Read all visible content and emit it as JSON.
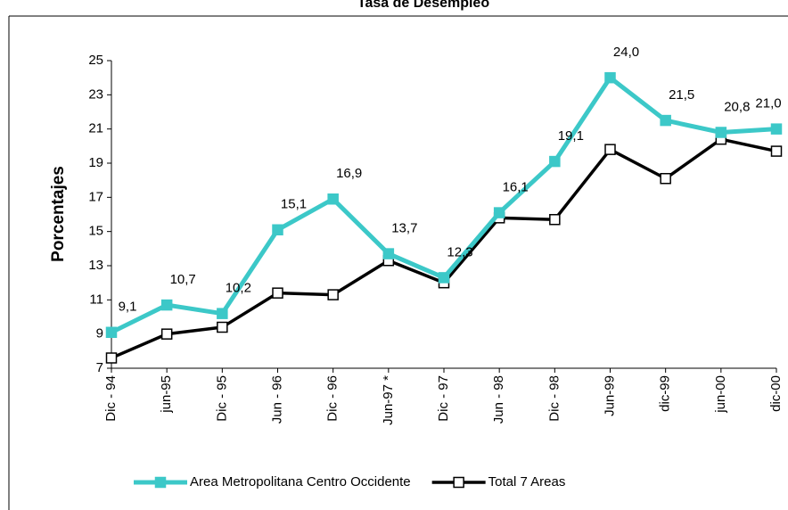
{
  "chart_data": {
    "type": "line",
    "title": "Tasa de Desempleo",
    "y_label": "Porcentajes",
    "categories": [
      "Dic - 94",
      "jun-95",
      "Dic - 95",
      "Jun - 96",
      "Dic - 96",
      "Jun-97 *",
      "Dic - 97",
      "Jun - 98",
      "Dic - 98",
      "Jun-99",
      "dic-99",
      "jun-00",
      "dic-00"
    ],
    "series": [
      {
        "name": "Area Metropolitana Centro Occidente",
        "color": "#3cc8c8",
        "marker": "filled",
        "values": [
          9.1,
          10.7,
          10.2,
          15.1,
          16.9,
          13.7,
          12.3,
          16.1,
          19.1,
          24.0,
          21.5,
          20.8,
          21.0
        ],
        "value_labels": [
          "9,1",
          "10,7",
          "10,2",
          "15,1",
          "16,9",
          "13,7",
          "12,3",
          "16,1",
          "19,1",
          "24,0",
          "21,5",
          "20,8",
          "21,0"
        ]
      },
      {
        "name": "Total 7 Areas",
        "color": "#000000",
        "marker": "open",
        "values": [
          7.6,
          9.0,
          9.4,
          11.4,
          11.3,
          13.3,
          12.0,
          15.8,
          15.7,
          19.8,
          18.1,
          20.4,
          19.7
        ]
      }
    ],
    "ylim": [
      7,
      25
    ],
    "yticks": [
      7,
      9,
      11,
      13,
      15,
      17,
      19,
      21,
      23,
      25
    ],
    "legend": "bottom"
  }
}
